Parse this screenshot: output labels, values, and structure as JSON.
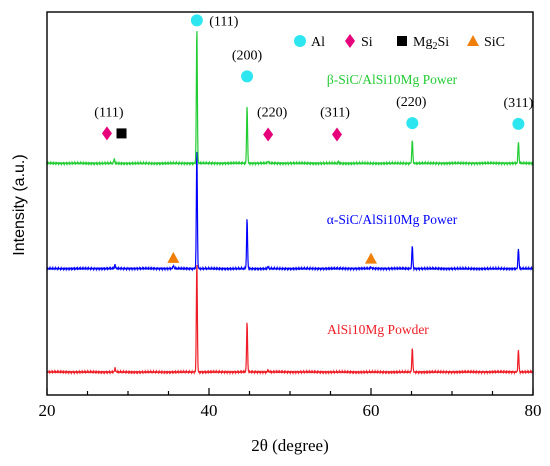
{
  "chart_data": {
    "type": "line",
    "xlabel": "2θ (degree)",
    "ylabel": "Intensity (a.u.)",
    "xlim": [
      20,
      80
    ],
    "x_ticks": [
      "20",
      "40",
      "60",
      "80"
    ],
    "y_ticks": [],
    "y_units": "relative intensity (a.u.); 0 = lowest trace baseline, 1 = plot top",
    "grid": false,
    "series": [
      {
        "name": "AlSi10Mg Powder",
        "color": "#ee1c24",
        "baseline": 0.06,
        "peaks": [
          {
            "x": 28.4,
            "h": 0.01
          },
          {
            "x": 38.5,
            "h": 0.29
          },
          {
            "x": 44.7,
            "h": 0.13
          },
          {
            "x": 47.3,
            "h": 0.005
          },
          {
            "x": 65.1,
            "h": 0.062
          },
          {
            "x": 78.2,
            "h": 0.058
          }
        ]
      },
      {
        "name": "α-SiC/AlSi10Mg Power",
        "color": "#0000ff",
        "baseline": 0.33,
        "peaks": [
          {
            "x": 28.4,
            "h": 0.01
          },
          {
            "x": 35.6,
            "h": 0.008
          },
          {
            "x": 38.5,
            "h": 0.315
          },
          {
            "x": 44.7,
            "h": 0.13
          },
          {
            "x": 47.3,
            "h": 0.005
          },
          {
            "x": 60.0,
            "h": 0.004
          },
          {
            "x": 65.1,
            "h": 0.06
          },
          {
            "x": 78.2,
            "h": 0.053
          }
        ]
      },
      {
        "name": "β-SiC/AlSi10Mg Power",
        "color": "#22cc33",
        "baseline": 0.605,
        "peaks": [
          {
            "x": 28.3,
            "h": 0.012
          },
          {
            "x": 38.5,
            "h": 0.355
          },
          {
            "x": 44.7,
            "h": 0.15
          },
          {
            "x": 47.3,
            "h": 0.006
          },
          {
            "x": 56.0,
            "h": 0.004
          },
          {
            "x": 65.1,
            "h": 0.062
          },
          {
            "x": 78.2,
            "h": 0.057
          }
        ]
      }
    ],
    "markers": [
      {
        "phase": "Al",
        "shape": "circle",
        "x": 38.5,
        "y": 0.978,
        "hkl": "(111)"
      },
      {
        "phase": "Al",
        "shape": "circle",
        "x": 44.7,
        "y": 0.832,
        "hkl": "(200)"
      },
      {
        "phase": "Al",
        "shape": "circle",
        "x": 65.1,
        "y": 0.71,
        "hkl": "(220)"
      },
      {
        "phase": "Al",
        "shape": "circle",
        "x": 78.2,
        "y": 0.708,
        "hkl": "(311)"
      },
      {
        "phase": "Si",
        "shape": "diamond",
        "x": 27.4,
        "y": 0.683,
        "hkl": "(111)"
      },
      {
        "phase": "Si",
        "shape": "diamond",
        "x": 47.3,
        "y": 0.68,
        "hkl": "(220)"
      },
      {
        "phase": "Si",
        "shape": "diamond",
        "x": 55.8,
        "y": 0.68,
        "hkl": "(311)"
      },
      {
        "phase": "Mg2Si",
        "shape": "square",
        "x": 29.2,
        "y": 0.683
      },
      {
        "phase": "SiC",
        "shape": "triangle",
        "x": 35.6,
        "y": 0.358
      },
      {
        "phase": "SiC",
        "shape": "triangle",
        "x": 60.0,
        "y": 0.356
      }
    ],
    "legend": {
      "placement": "top-right",
      "entries": [
        {
          "phase": "Al",
          "label": "Al",
          "shape": "circle",
          "color": "#2ee6f0"
        },
        {
          "phase": "Si",
          "label": "Si",
          "shape": "diamond",
          "color": "#e6007a"
        },
        {
          "phase": "Mg2Si",
          "label": "Mg",
          "sub": "2",
          "after": "Si",
          "shape": "square",
          "color": "#000000"
        },
        {
          "phase": "SiC",
          "label": "SiC",
          "shape": "triangle",
          "color": "#f07f0a"
        }
      ]
    }
  }
}
